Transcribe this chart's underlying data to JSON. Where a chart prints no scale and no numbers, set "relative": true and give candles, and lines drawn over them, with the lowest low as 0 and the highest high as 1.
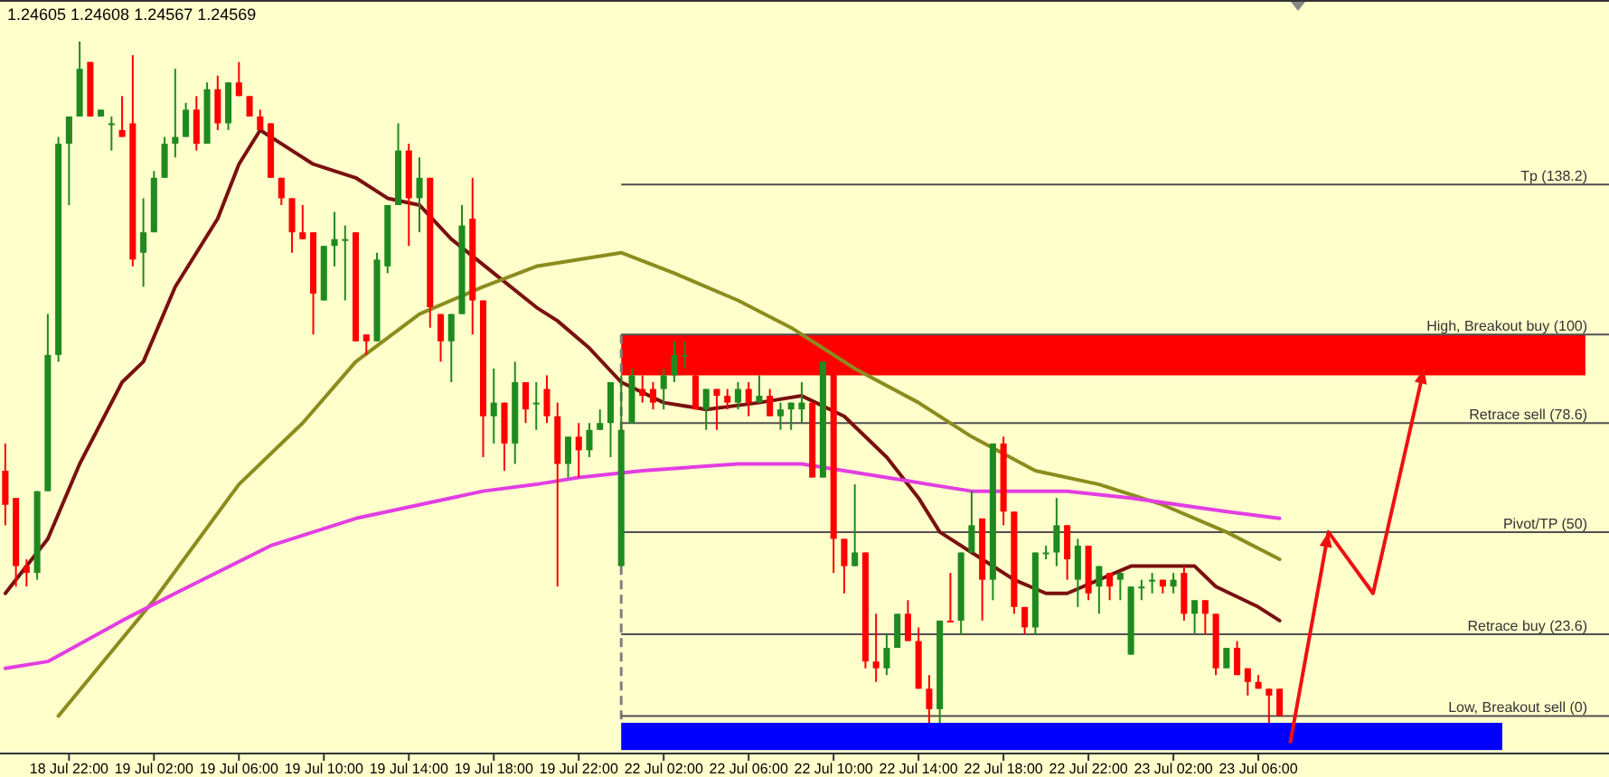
{
  "chart_data": {
    "type": "candlestick",
    "title": "1.24605 1.24608 1.24567 1.24569",
    "relative": true,
    "tick_labels": "x",
    "grid": false,
    "categories": [
      null,
      null,
      null,
      null,
      null,
      null,
      "18 Jul 22:00",
      null,
      null,
      null,
      null,
      null,
      null,
      null,
      "19 Jul 02:00",
      null,
      null,
      null,
      null,
      null,
      null,
      null,
      "19 Jul 06:00",
      null,
      null,
      null,
      null,
      null,
      null,
      null,
      "19 Jul 10:00",
      null,
      null,
      null,
      null,
      null,
      null,
      null,
      "19 Jul 14:00",
      null,
      null,
      null,
      null,
      null,
      null,
      null,
      "19 Jul 18:00",
      null,
      null,
      null,
      null,
      null,
      null,
      null,
      "19 Jul 22:00",
      null,
      null,
      null,
      null,
      null,
      null,
      null,
      "22 Jul 02:00",
      null,
      null,
      null,
      null,
      null,
      null,
      null,
      "22 Jul 06:00",
      null,
      null,
      null,
      null,
      null,
      null,
      null,
      "22 Jul 10:00",
      null,
      null,
      null,
      null,
      null,
      null,
      null,
      "22 Jul 14:00",
      null,
      null,
      null,
      null,
      null,
      null,
      null,
      "22 Jul 18:00",
      null,
      null,
      null,
      null,
      null,
      null,
      null,
      "22 Jul 22:00",
      null,
      null,
      null,
      null,
      null,
      null,
      null,
      "23 Jul 02:00",
      null,
      null,
      null,
      null,
      null,
      null,
      null,
      "23 Jul 06:00",
      null,
      null
    ],
    "ohlc": [
      [
        0.37,
        0.41,
        0.29,
        0.32
      ],
      [
        0.33,
        0.33,
        0.2,
        0.23
      ],
      [
        0.23,
        0.24,
        0.2,
        0.22
      ],
      [
        0.22,
        0.34,
        0.21,
        0.34
      ],
      [
        0.34,
        0.6,
        0.34,
        0.54
      ],
      [
        0.54,
        0.86,
        0.53,
        0.85
      ],
      [
        0.85,
        0.89,
        0.76,
        0.89
      ],
      [
        0.89,
        1,
        0.89,
        0.96
      ],
      [
        0.97,
        0.97,
        0.89,
        0.89
      ],
      [
        0.89,
        0.9,
        0.89,
        0.9
      ],
      [
        0.88,
        0.89,
        0.84,
        0.88
      ],
      [
        0.87,
        0.92,
        0.86,
        0.86
      ],
      [
        0.88,
        0.98,
        0.67,
        0.68
      ],
      [
        0.69,
        0.77,
        0.64,
        0.72
      ],
      [
        0.72,
        0.81,
        0.72,
        0.8
      ],
      [
        0.8,
        0.86,
        0.8,
        0.85
      ],
      [
        0.85,
        0.96,
        0.83,
        0.86
      ],
      [
        0.86,
        0.91,
        0.86,
        0.9
      ],
      [
        0.9,
        0.92,
        0.84,
        0.85
      ],
      [
        0.85,
        0.94,
        0.85,
        0.93
      ],
      [
        0.93,
        0.95,
        0.87,
        0.88
      ],
      [
        0.88,
        0.94,
        0.87,
        0.94
      ],
      [
        0.94,
        0.97,
        0.92,
        0.92
      ],
      [
        0.92,
        0.92,
        0.89,
        0.89
      ],
      [
        0.89,
        0.9,
        0.87,
        0.87
      ],
      [
        0.88,
        0.88,
        0.8,
        0.8
      ],
      [
        0.8,
        0.8,
        0.76,
        0.77
      ],
      [
        0.77,
        0.77,
        0.69,
        0.72
      ],
      [
        0.72,
        0.76,
        0.71,
        0.71
      ],
      [
        0.72,
        0.72,
        0.57,
        0.63
      ],
      [
        0.62,
        0.7,
        0.62,
        0.7
      ],
      [
        0.7,
        0.75,
        0.67,
        0.71
      ],
      [
        0.71,
        0.73,
        0.62,
        0.71
      ],
      [
        0.72,
        0.72,
        0.56,
        0.56
      ],
      [
        0.57,
        0.57,
        0.54,
        0.56
      ],
      [
        0.56,
        0.69,
        0.56,
        0.68
      ],
      [
        0.67,
        0.76,
        0.66,
        0.76
      ],
      [
        0.76,
        0.88,
        0.76,
        0.84
      ],
      [
        0.84,
        0.85,
        0.7,
        0.77
      ],
      [
        0.77,
        0.83,
        0.72,
        0.8
      ],
      [
        0.8,
        0.8,
        0.58,
        0.61
      ],
      [
        0.6,
        0.6,
        0.53,
        0.56
      ],
      [
        0.56,
        0.6,
        0.5,
        0.6
      ],
      [
        0.6,
        0.76,
        0.6,
        0.73
      ],
      [
        0.74,
        0.8,
        0.57,
        0.62
      ],
      [
        0.62,
        0.62,
        0.39,
        0.45
      ],
      [
        0.45,
        0.52,
        0.41,
        0.47
      ],
      [
        0.47,
        0.47,
        0.37,
        0.41
      ],
      [
        0.41,
        0.53,
        0.38,
        0.5
      ],
      [
        0.5,
        0.5,
        0.44,
        0.46
      ],
      [
        0.47,
        0.5,
        0.43,
        0.47
      ],
      [
        0.49,
        0.51,
        0.44,
        0.45
      ],
      [
        0.45,
        0.47,
        0.2,
        0.38
      ],
      [
        0.38,
        0.42,
        0.36,
        0.42
      ],
      [
        0.42,
        0.44,
        0.36,
        0.4
      ],
      [
        0.4,
        0.44,
        0.39,
        0.43
      ],
      [
        0.43,
        0.46,
        0.43,
        0.44
      ],
      [
        0.44,
        0.5,
        0.39,
        0.5
      ],
      [
        0.23,
        0.51,
        0.23,
        0.43
      ],
      [
        0.44,
        0.52,
        0.44,
        0.51
      ],
      [
        0.49,
        0.51,
        0.47,
        0.48
      ],
      [
        0.49,
        0.5,
        0.46,
        0.47
      ],
      [
        0.49,
        0.52,
        0.46,
        0.51
      ],
      [
        0.51,
        0.56,
        0.5,
        0.54
      ],
      [
        0.54,
        0.56,
        0.52,
        0.54
      ],
      [
        0.51,
        0.51,
        0.46,
        0.46
      ],
      [
        0.46,
        0.49,
        0.43,
        0.49
      ],
      [
        0.49,
        0.49,
        0.43,
        0.48
      ],
      [
        0.48,
        0.49,
        0.46,
        0.47
      ],
      [
        0.47,
        0.5,
        0.46,
        0.49
      ],
      [
        0.49,
        0.5,
        0.45,
        0.47
      ],
      [
        0.47,
        0.51,
        0.47,
        0.48
      ],
      [
        0.48,
        0.49,
        0.45,
        0.45
      ],
      [
        0.45,
        0.47,
        0.43,
        0.46
      ],
      [
        0.46,
        0.47,
        0.43,
        0.47
      ],
      [
        0.46,
        0.5,
        0.44,
        0.47
      ],
      [
        0.47,
        0.47,
        0.36,
        0.36
      ],
      [
        0.36,
        0.53,
        0.36,
        0.53
      ],
      [
        0.53,
        0.53,
        0.22,
        0.27
      ],
      [
        0.27,
        0.27,
        0.19,
        0.23
      ],
      [
        0.23,
        0.35,
        0.23,
        0.25
      ],
      [
        0.25,
        0.25,
        0.08,
        0.09
      ],
      [
        0.09,
        0.16,
        0.06,
        0.08
      ],
      [
        0.08,
        0.13,
        0.07,
        0.11
      ],
      [
        0.11,
        0.16,
        0.11,
        0.16
      ],
      [
        0.16,
        0.18,
        0.12,
        0.12
      ],
      [
        0.12,
        0.14,
        0.05,
        0.05
      ],
      [
        0.05,
        0.07,
        0,
        0.02
      ],
      [
        0.02,
        0.15,
        0,
        0.15
      ],
      [
        0.15,
        0.22,
        0.15,
        0.15
      ],
      [
        0.15,
        0.25,
        0.13,
        0.25
      ],
      [
        0.25,
        0.34,
        0.25,
        0.29
      ],
      [
        0.3,
        0.3,
        0.15,
        0.21
      ],
      [
        0.21,
        0.41,
        0.18,
        0.41
      ],
      [
        0.41,
        0.42,
        0.29,
        0.31
      ],
      [
        0.31,
        0.31,
        0.16,
        0.17
      ],
      [
        0.17,
        0.17,
        0.13,
        0.14
      ],
      [
        0.14,
        0.25,
        0.13,
        0.25
      ],
      [
        0.25,
        0.26,
        0.24,
        0.25
      ],
      [
        0.25,
        0.33,
        0.23,
        0.29
      ],
      [
        0.29,
        0.29,
        0.21,
        0.24
      ],
      [
        0.21,
        0.27,
        0.17,
        0.26
      ],
      [
        0.26,
        0.26,
        0.18,
        0.19
      ],
      [
        0.2,
        0.23,
        0.16,
        0.23
      ],
      [
        0.22,
        0.22,
        0.18,
        0.2
      ],
      [
        0.21,
        0.22,
        0.18,
        0.22
      ],
      [
        0.1,
        0.2,
        0.1,
        0.2
      ],
      [
        0.2,
        0.21,
        0.18,
        0.2
      ],
      [
        0.21,
        0.22,
        0.19,
        0.21
      ],
      [
        0.21,
        0.21,
        0.19,
        0.2
      ],
      [
        0.2,
        0.22,
        0.19,
        0.21
      ],
      [
        0.22,
        0.23,
        0.15,
        0.16
      ],
      [
        0.16,
        0.18,
        0.13,
        0.18
      ],
      [
        0.18,
        0.18,
        0.13,
        0.16
      ],
      [
        0.16,
        0.16,
        0.07,
        0.08
      ],
      [
        0.08,
        0.11,
        0.08,
        0.11
      ],
      [
        0.11,
        0.12,
        0.07,
        0.07
      ],
      [
        0.08,
        0.08,
        0.04,
        0.06
      ],
      [
        0.06,
        0.07,
        0.05,
        0.05
      ],
      [
        0.05,
        0.05,
        0,
        0.04
      ],
      [
        0.05,
        0.05,
        0.01,
        0.01
      ]
    ],
    "colors": [
      "#ff0000",
      "#ff0000",
      "#ff0000",
      "#1f8a1f",
      "#1f8a1f",
      "#1f8a1f",
      "#1f8a1f",
      "#1f8a1f",
      "#ff0000",
      "#1f8a1f",
      "#1f8a1f",
      "#ff0000",
      "#ff0000",
      "#1f8a1f",
      "#1f8a1f",
      "#1f8a1f",
      "#1f8a1f",
      "#1f8a1f",
      "#ff0000",
      "#1f8a1f",
      "#ff0000",
      "#1f8a1f",
      "#ff0000",
      "#ff0000",
      "#ff0000",
      "#ff0000",
      "#ff0000",
      "#ff0000",
      "#ff0000",
      "#ff0000",
      "#1f8a1f",
      "#1f8a1f",
      "#1f8a1f",
      "#ff0000",
      "#ff0000",
      "#1f8a1f",
      "#1f8a1f",
      "#1f8a1f",
      "#ff0000",
      "#1f8a1f",
      "#ff0000",
      "#ff0000",
      "#1f8a1f",
      "#1f8a1f",
      "#ff0000",
      "#ff0000",
      "#1f8a1f",
      "#ff0000",
      "#1f8a1f",
      "#ff0000",
      "#1f8a1f",
      "#ff0000",
      "#ff0000",
      "#1f8a1f",
      "#ff0000",
      "#1f8a1f",
      "#1f8a1f",
      "#1f8a1f",
      "#1f8a1f",
      "#1f8a1f",
      "#ff0000",
      "#ff0000",
      "#1f8a1f",
      "#1f8a1f",
      "#1f8a1f",
      "#ff0000",
      "#1f8a1f",
      "#ff0000",
      "#ff0000",
      "#1f8a1f",
      "#ff0000",
      "#1f8a1f",
      "#ff0000",
      "#1f8a1f",
      "#1f8a1f",
      "#1f8a1f",
      "#ff0000",
      "#1f8a1f",
      "#ff0000",
      "#ff0000",
      "#1f8a1f",
      "#ff0000",
      "#ff0000",
      "#1f8a1f",
      "#1f8a1f",
      "#ff0000",
      "#ff0000",
      "#ff0000",
      "#1f8a1f",
      "#ff0000",
      "#1f8a1f",
      "#1f8a1f",
      "#ff0000",
      "#1f8a1f",
      "#ff0000",
      "#ff0000",
      "#ff0000",
      "#1f8a1f",
      "#1f8a1f",
      "#1f8a1f",
      "#ff0000",
      "#1f8a1f",
      "#ff0000",
      "#1f8a1f",
      "#ff0000",
      "#1f8a1f",
      "#1f8a1f",
      "#1f8a1f",
      "#1f8a1f",
      "#ff0000",
      "#1f8a1f",
      "#ff0000",
      "#1f8a1f",
      "#ff0000",
      "#ff0000",
      "#1f8a1f",
      "#ff0000",
      "#ff0000",
      "#ff0000",
      "#ff0000",
      "#ff0000"
    ],
    "series": [
      {
        "type": "line",
        "color": "#7a1010",
        "values": [
          0.19,
          null,
          0.23,
          null,
          0.27,
          null,
          null,
          0.38,
          null,
          null,
          null,
          0.5,
          null,
          0.53,
          null,
          null,
          0.64,
          null,
          null,
          null,
          0.74,
          null,
          0.82,
          null,
          0.87,
          null,
          0.85,
          null,
          null,
          0.82,
          null,
          null,
          null,
          0.8,
          null,
          null,
          0.77,
          null,
          null,
          0.76,
          null,
          null,
          0.71,
          null,
          null,
          null,
          0.66,
          null,
          null,
          null,
          0.61,
          null,
          0.59,
          null,
          null,
          0.55,
          null,
          null,
          0.5,
          null,
          null,
          null,
          0.47,
          null,
          null,
          null,
          0.46,
          null,
          null,
          null,
          null,
          0.47,
          null,
          null,
          null,
          0.48,
          null,
          null,
          null,
          0.45,
          null,
          null,
          null,
          0.39,
          null,
          null,
          0.33,
          null,
          0.28,
          null,
          null,
          null,
          0.24,
          null,
          null,
          0.21,
          null,
          null,
          0.19,
          null,
          0.19,
          null,
          null,
          0.21,
          null,
          null,
          0.23,
          null,
          null,
          0.23,
          null,
          null,
          0.23,
          null,
          0.2,
          null,
          null,
          null,
          0.17,
          null,
          0.15
        ]
      },
      {
        "type": "line",
        "color": "#8c8c1e",
        "values": [
          null,
          null,
          null,
          null,
          null,
          0.01,
          null,
          null,
          null,
          null,
          null,
          null,
          null,
          null,
          0.18,
          null,
          null,
          null,
          null,
          null,
          null,
          null,
          0.35,
          null,
          null,
          null,
          null,
          null,
          0.44,
          null,
          null,
          null,
          null,
          0.53,
          null,
          null,
          null,
          null,
          null,
          0.6,
          null,
          null,
          null,
          null,
          null,
          0.64,
          null,
          null,
          null,
          null,
          0.67,
          null,
          null,
          null,
          0.68,
          null,
          null,
          null,
          0.69,
          null,
          null,
          null,
          null,
          0.66,
          null,
          null,
          null,
          null,
          null,
          0.62,
          null,
          null,
          null,
          null,
          0.58,
          null,
          null,
          null,
          null,
          null,
          0.52,
          null,
          null,
          null,
          null,
          null,
          0.47,
          null,
          null,
          null,
          null,
          0.42,
          null,
          null,
          null,
          null,
          null,
          0.37,
          null,
          null,
          null,
          null,
          null,
          0.35,
          null,
          null,
          null,
          null,
          null,
          0.32,
          null,
          null,
          null,
          null,
          null,
          0.28,
          null,
          null,
          null,
          null,
          0.24
        ]
      },
      {
        "type": "line",
        "color": "#e23ee2",
        "values": [
          0.08,
          null,
          null,
          null,
          0.09,
          null,
          null,
          null,
          null,
          null,
          null,
          0.15,
          null,
          null,
          null,
          null,
          0.19,
          null,
          null,
          null,
          null,
          null,
          null,
          null,
          null,
          0.26,
          null,
          null,
          null,
          null,
          null,
          null,
          null,
          0.3,
          null,
          null,
          null,
          null,
          null,
          null,
          null,
          null,
          null,
          null,
          null,
          0.34,
          null,
          null,
          null,
          null,
          0.35,
          null,
          null,
          null,
          0.36,
          null,
          null,
          null,
          null,
          null,
          0.37,
          null,
          null,
          null,
          null,
          null,
          null,
          null,
          null,
          0.38,
          null,
          null,
          null,
          null,
          null,
          0.38,
          null,
          null,
          null,
          null,
          null,
          null,
          null,
          0.36,
          null,
          null,
          null,
          null,
          null,
          null,
          null,
          0.34,
          null,
          null,
          null,
          null,
          null,
          null,
          null,
          null,
          0.34,
          null,
          null,
          null,
          null,
          null,
          0.33,
          null,
          null,
          null,
          null,
          null,
          null,
          null,
          null,
          0.31,
          null,
          null,
          null,
          null,
          0.3
        ]
      }
    ],
    "ref_lines": [
      {
        "axis": "y",
        "value": 0.79,
        "label": "Tp (138.2)",
        "color": "#505050"
      },
      {
        "axis": "y",
        "value": 0.57,
        "label": "High, Breakout buy (100)",
        "color": "#505050"
      },
      {
        "axis": "y",
        "value": 0.44,
        "label": "Retrace sell (78.6)",
        "color": "#505050"
      },
      {
        "axis": "y",
        "value": 0.28,
        "label": "Pivot/TP (50)",
        "color": "#505050"
      },
      {
        "axis": "y",
        "value": 0.13,
        "label": "Retrace buy (23.6)",
        "color": "#505050"
      },
      {
        "axis": "y",
        "value": 0.01,
        "label": "Low, Breakout sell (0)",
        "color": "#505050"
      }
    ],
    "bands": [
      {
        "axis": "y",
        "from": 0.51,
        "to": 0.57,
        "color": "#ff0000"
      },
      {
        "axis": "y",
        "from": -0.04,
        "to": 0,
        "color": "#0000ff"
      }
    ]
  }
}
